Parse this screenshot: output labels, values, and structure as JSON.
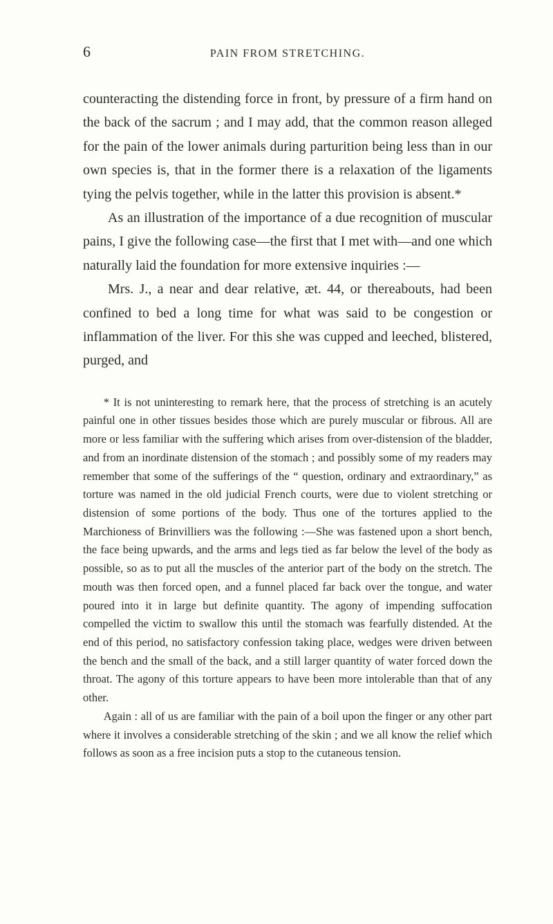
{
  "page_number": "6",
  "running_head": "PAIN FROM STRETCHING.",
  "paragraphs": {
    "p1": "counteracting the distending force in front, by pressure of a firm hand on the back of the sacrum ; and I may add, that the common reason alleged for the pain of the lower animals during parturition being less than in our own species is, that in the former there is a relaxation of the ligaments tying the pelvis together, while in the latter this provision is absent.*",
    "p2": "As an illustration of the importance of a due recognition of muscular pains, I give the following case—the first that I met with—and one which naturally laid the foundation for more extensive inquiries :—",
    "p3": "Mrs. J., a near and dear relative, æt. 44, or thereabouts, had been confined to bed a long time for what was said to be congestion or inflammation of the liver. For this she was cupped and leeched, blistered, purged, and"
  },
  "footnote": {
    "f1": "* It is not uninteresting to remark here, that the process of stretching is an acutely painful one in other tissues besides those which are purely muscular or fibrous. All are more or less familiar with the suffering which arises from over-distension of the bladder, and from an inordinate distension of the stomach ; and possibly some of my readers may remember that some of the sufferings of the “ question, ordinary and extraordinary,” as torture was named in the old judicial French courts, were due to violent stretching or distension of some portions of the body. Thus one of the tortures applied to the Marchioness of Brinvilliers was the following :—She was fastened upon a short bench, the face being upwards, and the arms and legs tied as far below the level of the body as possible, so as to put all the muscles of the anterior part of the body on the stretch. The mouth was then forced open, and a funnel placed far back over the tongue, and water poured into it in large but definite quantity. The agony of impending suffocation compelled the victim to swallow this until the stomach was fearfully distended. At the end of this period, no satisfactory confession taking place, wedges were driven between the bench and the small of the back, and a still larger quantity of water forced down the throat. The agony of this torture appears to have been more intolerable than that of any other.",
    "f2": "Again : all of us are familiar with the pain of a boil upon the finger or any other part where it involves a considerable stretching of the skin ; and we all know the relief which follows as soon as a free incision puts a stop to the cutaneous tension."
  }
}
